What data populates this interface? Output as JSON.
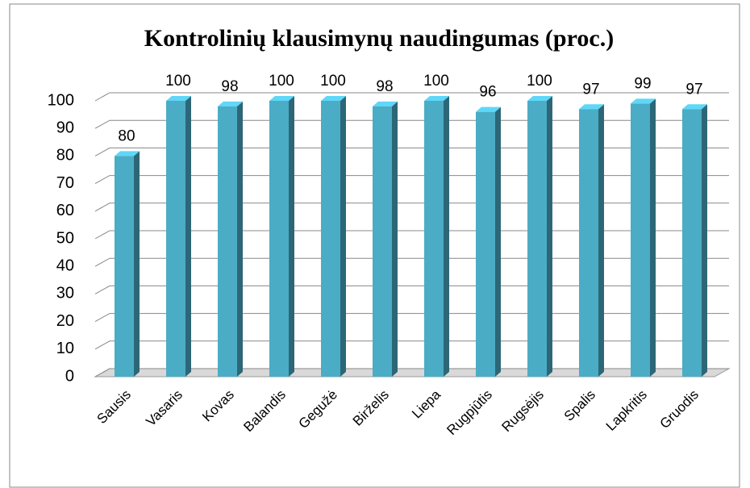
{
  "chart_data": {
    "type": "bar",
    "title": "Kontrolinių klausimynų naudingumas (proc.)",
    "categories": [
      "Sausis",
      "Vasaris",
      "Kovas",
      "Balandis",
      "Gegužė",
      "Birželis",
      "Liepa",
      "Rugpjūtis",
      "Rugsėjis",
      "Spalis",
      "Lapkritis",
      "Gruodis"
    ],
    "values": [
      80,
      100,
      98,
      100,
      100,
      98,
      100,
      96,
      100,
      97,
      99,
      97
    ],
    "color": "#4bacc6",
    "ylim": [
      0,
      100
    ],
    "yticks": [
      0,
      10,
      20,
      30,
      40,
      50,
      60,
      70,
      80,
      90,
      100
    ],
    "grid": true
  }
}
